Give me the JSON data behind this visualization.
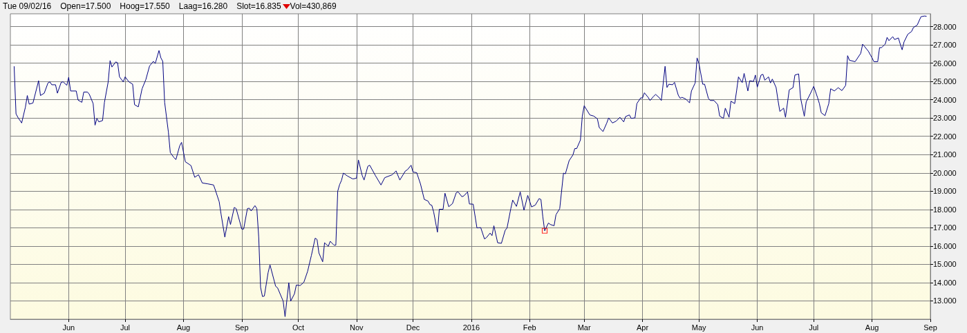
{
  "chart_data": {
    "type": "line",
    "title": "Tue 09/02/16",
    "annotations": [
      "Open=17.500",
      "Hoog=17.550",
      "Laag=16.280",
      "Slot=16.835",
      "Vol=430,869"
    ],
    "xlim": [
      "2015-05-01",
      "2016-09-01"
    ],
    "xticks": [
      {
        "value": "2015-06-01",
        "label": "Jun"
      },
      {
        "value": "2015-07-01",
        "label": "Jul"
      },
      {
        "value": "2015-08-01",
        "label": "Aug"
      },
      {
        "value": "2015-09-01",
        "label": "Sep"
      },
      {
        "value": "2015-10-01",
        "label": "Oct"
      },
      {
        "value": "2015-11-01",
        "label": "Nov"
      },
      {
        "value": "2015-12-01",
        "label": "Dec"
      },
      {
        "value": "2016-01-01",
        "label": "2016"
      },
      {
        "value": "2016-02-01",
        "label": "Feb"
      },
      {
        "value": "2016-03-01",
        "label": "Mar"
      },
      {
        "value": "2016-04-01",
        "label": "Apr"
      },
      {
        "value": "2016-05-01",
        "label": "May"
      },
      {
        "value": "2016-06-01",
        "label": "Jun"
      },
      {
        "value": "2016-07-01",
        "label": "Jul"
      },
      {
        "value": "2016-08-01",
        "label": "Aug"
      },
      {
        "value": "2016-09-01",
        "label": "Sep"
      }
    ],
    "ylim": [
      12.0,
      28.7
    ],
    "yticks": [
      {
        "value": 13,
        "label": "13.000"
      },
      {
        "value": 14,
        "label": "14.000"
      },
      {
        "value": 15,
        "label": "15.000"
      },
      {
        "value": 16,
        "label": "16.000"
      },
      {
        "value": 17,
        "label": "17.000"
      },
      {
        "value": 18,
        "label": "18.000"
      },
      {
        "value": 19,
        "label": "19.000"
      },
      {
        "value": 20,
        "label": "20.000"
      },
      {
        "value": 21,
        "label": "21.000"
      },
      {
        "value": 22,
        "label": "22.000"
      },
      {
        "value": 23,
        "label": "23.000"
      },
      {
        "value": 24,
        "label": "24.000"
      },
      {
        "value": 25,
        "label": "25.000"
      },
      {
        "value": 26,
        "label": "26.000"
      },
      {
        "value": 27,
        "label": "27.000"
      },
      {
        "value": 28,
        "label": "28.000"
      }
    ],
    "grid": true,
    "series": [
      {
        "color": "#000080",
        "marker": "none",
        "x": [
          "2015-05-03",
          "2015-05-04",
          "2015-05-05",
          "2015-05-07",
          "2015-05-09",
          "2015-05-10",
          "2015-05-11",
          "2015-05-13",
          "2015-05-16",
          "2015-05-17",
          "2015-05-19",
          "2015-05-21",
          "2015-05-22",
          "2015-05-23",
          "2015-05-25",
          "2015-05-26",
          "2015-05-28",
          "2015-05-29",
          "2015-05-31",
          "2015-06-01",
          "2015-06-02",
          "2015-06-05",
          "2015-06-06",
          "2015-06-08",
          "2015-06-09",
          "2015-06-11",
          "2015-06-12",
          "2015-06-14",
          "2015-06-15",
          "2015-06-16",
          "2015-06-17",
          "2015-06-19",
          "2015-06-20",
          "2015-06-22",
          "2015-06-23",
          "2015-06-24",
          "2015-06-26",
          "2015-06-27",
          "2015-06-28",
          "2015-06-30",
          "2015-07-01",
          "2015-07-03",
          "2015-07-05",
          "2015-07-06",
          "2015-07-08",
          "2015-07-10",
          "2015-07-12",
          "2015-07-14",
          "2015-07-16",
          "2015-07-17",
          "2015-07-19",
          "2015-07-20",
          "2015-07-21",
          "2015-07-22",
          "2015-07-24",
          "2015-07-25",
          "2015-07-27",
          "2015-07-28",
          "2015-07-30",
          "2015-07-31",
          "2015-08-02",
          "2015-08-05",
          "2015-08-07",
          "2015-08-09",
          "2015-08-11",
          "2015-08-14",
          "2015-08-17",
          "2015-08-18",
          "2015-08-20",
          "2015-08-21",
          "2015-08-23",
          "2015-08-25",
          "2015-08-26",
          "2015-08-28",
          "2015-08-29",
          "2015-09-01",
          "2015-09-02",
          "2015-09-04",
          "2015-09-05",
          "2015-09-06",
          "2015-09-08",
          "2015-09-09",
          "2015-09-10",
          "2015-09-11",
          "2015-09-12",
          "2015-09-13",
          "2015-09-15",
          "2015-09-16",
          "2015-09-19",
          "2015-09-20",
          "2015-09-23",
          "2015-09-24",
          "2015-09-26",
          "2015-09-27",
          "2015-09-29",
          "2015-09-30",
          "2015-10-02",
          "2015-10-04",
          "2015-10-06",
          "2015-10-08",
          "2015-10-10",
          "2015-10-11",
          "2015-10-12",
          "2015-10-14",
          "2015-10-15",
          "2015-10-17",
          "2015-10-18",
          "2015-10-20",
          "2015-10-21",
          "2015-10-22",
          "2015-10-23",
          "2015-10-24",
          "2015-10-25",
          "2015-10-27",
          "2015-10-30",
          "2015-11-01",
          "2015-11-02",
          "2015-11-04",
          "2015-11-05",
          "2015-11-07",
          "2015-11-08",
          "2015-11-11",
          "2015-11-14",
          "2015-11-16",
          "2015-11-20",
          "2015-11-22",
          "2015-11-24",
          "2015-11-27",
          "2015-11-28",
          "2015-11-30",
          "2015-12-01",
          "2015-12-03",
          "2015-12-05",
          "2015-12-07",
          "2015-12-09",
          "2015-12-10",
          "2015-12-11",
          "2015-12-12",
          "2015-12-14",
          "2015-12-15",
          "2015-12-17",
          "2015-12-18",
          "2015-12-20",
          "2015-12-22",
          "2015-12-24",
          "2015-12-25",
          "2015-12-27",
          "2015-12-28",
          "2015-12-30",
          "2015-12-31",
          "2016-01-02",
          "2016-01-04",
          "2016-01-06",
          "2016-01-08",
          "2016-01-09",
          "2016-01-11",
          "2016-01-12",
          "2016-01-13",
          "2016-01-15",
          "2016-01-17",
          "2016-01-19",
          "2016-01-20",
          "2016-01-22",
          "2016-01-23",
          "2016-01-25",
          "2016-01-27",
          "2016-01-29",
          "2016-01-31",
          "2016-02-02",
          "2016-02-04",
          "2016-02-06",
          "2016-02-07",
          "2016-02-08",
          "2016-02-09",
          "2016-02-11",
          "2016-02-12",
          "2016-02-14",
          "2016-02-15",
          "2016-02-17",
          "2016-02-19",
          "2016-02-20",
          "2016-02-22",
          "2016-02-24",
          "2016-02-25",
          "2016-02-26",
          "2016-02-28",
          "2016-02-29",
          "2016-03-01",
          "2016-03-04",
          "2016-03-06",
          "2016-03-08",
          "2016-03-09",
          "2016-03-11",
          "2016-03-13",
          "2016-03-14",
          "2016-03-16",
          "2016-03-18",
          "2016-03-20",
          "2016-03-22",
          "2016-03-23",
          "2016-03-25",
          "2016-03-26",
          "2016-03-28",
          "2016-03-29",
          "2016-03-31",
          "2016-04-01",
          "2016-04-02",
          "2016-04-04",
          "2016-04-05",
          "2016-04-07",
          "2016-04-08",
          "2016-04-10",
          "2016-04-11",
          "2016-04-13",
          "2016-04-14",
          "2016-04-15",
          "2016-04-17",
          "2016-04-18",
          "2016-04-20",
          "2016-04-21",
          "2016-04-22",
          "2016-04-24",
          "2016-04-26",
          "2016-04-27",
          "2016-04-29",
          "2016-04-30",
          "2016-05-01",
          "2016-05-03",
          "2016-05-04",
          "2016-05-06",
          "2016-05-07",
          "2016-05-09",
          "2016-05-11",
          "2016-05-12",
          "2016-05-14",
          "2016-05-15",
          "2016-05-17",
          "2016-05-18",
          "2016-05-20",
          "2016-05-21",
          "2016-05-22",
          "2016-05-24",
          "2016-05-25",
          "2016-05-27",
          "2016-05-28",
          "2016-05-30",
          "2016-05-31",
          "2016-06-01",
          "2016-06-03",
          "2016-06-04",
          "2016-06-05",
          "2016-06-07",
          "2016-06-08",
          "2016-06-09",
          "2016-06-11",
          "2016-06-12",
          "2016-06-13",
          "2016-06-15",
          "2016-06-16",
          "2016-06-18",
          "2016-06-20",
          "2016-06-21",
          "2016-06-23",
          "2016-06-24",
          "2016-06-26",
          "2016-06-27",
          "2016-06-29",
          "2016-07-01",
          "2016-07-03",
          "2016-07-04",
          "2016-07-05",
          "2016-07-07",
          "2016-07-09",
          "2016-07-10",
          "2016-07-12",
          "2016-07-14",
          "2016-07-16",
          "2016-07-18",
          "2016-07-19",
          "2016-07-20",
          "2016-07-23",
          "2016-07-26",
          "2016-07-27",
          "2016-07-30",
          "2016-08-01",
          "2016-08-02",
          "2016-08-04",
          "2016-08-05",
          "2016-08-06",
          "2016-08-08",
          "2016-08-09",
          "2016-08-10",
          "2016-08-12",
          "2016-08-13",
          "2016-08-15",
          "2016-08-16",
          "2016-08-17",
          "2016-08-18",
          "2016-08-20",
          "2016-08-22",
          "2016-08-23",
          "2016-08-25",
          "2016-08-27",
          "2016-08-29",
          "2016-08-30"
        ],
        "values": [
          25.83,
          23.23,
          23.04,
          22.73,
          23.6,
          24.23,
          23.76,
          23.82,
          25.04,
          24.23,
          24.36,
          24.92,
          24.98,
          24.82,
          24.82,
          24.36,
          24.95,
          24.98,
          24.79,
          25.23,
          24.48,
          24.48,
          23.98,
          23.86,
          24.42,
          24.42,
          24.29,
          23.79,
          22.61,
          22.98,
          22.79,
          22.86,
          23.86,
          24.98,
          26.14,
          25.79,
          26.07,
          26.02,
          25.25,
          24.98,
          25.25,
          24.98,
          24.85,
          23.73,
          23.61,
          24.6,
          25.1,
          25.85,
          26.1,
          25.98,
          26.69,
          26.29,
          26.1,
          23.86,
          22.23,
          21.11,
          20.83,
          20.73,
          21.48,
          21.67,
          20.61,
          20.4,
          19.76,
          19.9,
          19.45,
          19.4,
          19.34,
          19.05,
          18.42,
          17.74,
          16.49,
          17.61,
          17.18,
          18.11,
          18.05,
          16.93,
          16.93,
          18.05,
          18.07,
          17.92,
          18.21,
          18.05,
          16.49,
          13.74,
          13.24,
          13.27,
          14.55,
          14.97,
          13.8,
          13.72,
          12.99,
          12.14,
          14.0,
          12.99,
          13.39,
          13.87,
          13.84,
          14.02,
          14.62,
          15.49,
          16.43,
          16.36,
          15.62,
          15.14,
          16.18,
          15.99,
          16.26,
          16.05,
          16.05,
          19.0,
          19.36,
          19.59,
          19.99,
          19.84,
          19.67,
          19.71,
          20.71,
          19.86,
          19.61,
          20.36,
          20.42,
          19.86,
          19.34,
          19.74,
          19.9,
          20.11,
          19.61,
          20.11,
          20.17,
          20.42,
          20.05,
          20.01,
          19.39,
          18.55,
          18.46,
          18.27,
          18.23,
          17.86,
          16.76,
          18.01,
          18.01,
          18.89,
          18.15,
          18.32,
          18.92,
          18.96,
          18.7,
          18.74,
          18.96,
          18.3,
          18.29,
          16.99,
          17.01,
          16.39,
          16.46,
          16.71,
          16.57,
          17.11,
          16.18,
          16.15,
          16.86,
          16.99,
          18.05,
          18.51,
          18.17,
          18.96,
          17.96,
          18.77,
          18.14,
          18.24,
          18.59,
          18.55,
          17.61,
          16.835,
          17.26,
          17.18,
          17.11,
          17.71,
          18.05,
          19.99,
          19.95,
          20.67,
          20.98,
          21.33,
          21.33,
          21.8,
          23.11,
          23.67,
          23.17,
          23.11,
          22.96,
          22.48,
          22.26,
          22.73,
          23.01,
          22.73,
          22.83,
          23.04,
          22.79,
          23.08,
          23.17,
          22.98,
          23.01,
          23.79,
          24.1,
          24.1,
          24.38,
          24.13,
          23.96,
          24.2,
          24.29,
          24.1,
          23.96,
          25.83,
          24.67,
          24.85,
          24.82,
          24.95,
          24.25,
          24.08,
          24.13,
          24.04,
          23.83,
          24.48,
          24.92,
          26.29,
          25.98,
          24.85,
          24.85,
          24.08,
          23.96,
          23.96,
          23.73,
          23.11,
          22.98,
          23.54,
          23.04,
          23.92,
          23.79,
          24.48,
          25.25,
          24.94,
          25.44,
          24.48,
          25.04,
          25.0,
          25.35,
          24.69,
          25.35,
          25.39,
          25.07,
          25.25,
          24.92,
          25.13,
          24.67,
          23.98,
          23.36,
          23.54,
          23.04,
          24.54,
          24.66,
          25.35,
          25.41,
          24.1,
          23.1,
          23.88,
          24.29,
          24.73,
          24.13,
          23.79,
          23.29,
          23.13,
          23.79,
          24.6,
          24.48,
          24.66,
          24.5,
          24.79,
          26.41,
          26.16,
          26.08,
          26.54,
          27.04,
          26.66,
          26.29,
          26.08,
          26.08,
          26.85,
          26.85,
          27.04,
          27.41,
          27.23,
          27.45,
          27.29,
          27.38,
          27.04,
          26.73,
          27.16,
          27.58,
          27.73,
          27.95,
          28.08,
          28.54,
          28.58,
          28.56
        ]
      },
      {
        "type": "scatter",
        "color": "#ff0000",
        "marker": "square",
        "x": [
          "2016-02-09"
        ],
        "values": [
          16.835
        ]
      }
    ]
  }
}
